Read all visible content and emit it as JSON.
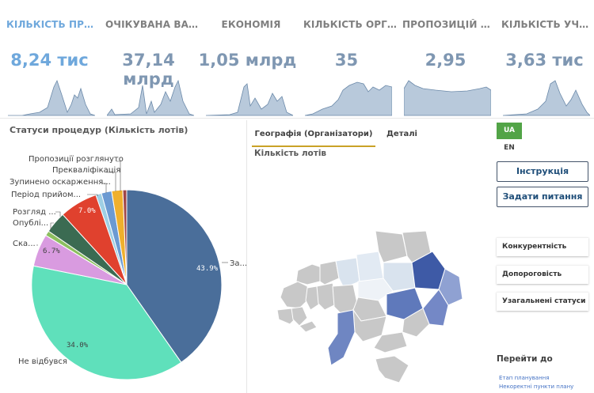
{
  "kpis": [
    {
      "title": "КІЛЬКІСТЬ ПРОЦ...",
      "value": "8,24 тис",
      "active": true
    },
    {
      "title": "ОЧІКУВАНА ВАРТ...",
      "value": "37,14 млрд",
      "active": false
    },
    {
      "title": "ЕКОНОМІЯ",
      "value": "1,05 млрд",
      "active": false
    },
    {
      "title": "КІЛЬКІСТЬ ОРГА...",
      "value": "35",
      "active": false
    },
    {
      "title": "ПРОПОЗИЦІЙ НА ...",
      "value": "2,95",
      "active": false
    },
    {
      "title": "КІЛЬКІСТЬ УЧАС...",
      "value": "3,63 тис",
      "active": false
    }
  ],
  "pie": {
    "title": "Статуси процедур (Кількість лотів)",
    "labels": {
      "proposals_reviewed": "Пропозиції розглянуто",
      "prequalification": "Прекваліфікація",
      "stopped_appeal": "Зупинено оскарження...",
      "acceptance_period": "Період прийом...",
      "review": "Розгляд ...",
      "published": "Опублі...",
      "ska": "Ска...",
      "za": "За...",
      "not_held": "Не відбувся"
    },
    "pct_labels": {
      "za": "43.9%",
      "not_held": "34.0%",
      "ska": "6.7%",
      "acceptance": "7.0%"
    },
    "colors": {
      "za": "#4a6e9a",
      "not_held": "#5fe0bb",
      "ska": "#d99be0",
      "published": "#8cbf5f",
      "review": "#3b6b52",
      "acceptance": "#e0412e",
      "stopped": "#9ecfe4",
      "prequal": "#6b9ad2",
      "proposals": "#efb02d",
      "tiny1": "#a14747",
      "tiny2": "#c9c9c9"
    }
  },
  "map_panel": {
    "tab_geo": "Географія (Організатори)",
    "tab_details": "Деталі",
    "subtitle": "Кількість лотів"
  },
  "right_panel": {
    "lang_ua": "UA",
    "lang_en": "EN",
    "instructions": "Інструкція",
    "ask_question": "Задати питання",
    "competitiveness": "Конкурентність",
    "thresholds": "Допороговість",
    "general_statuses": "Узагальнені статуси",
    "goto_title": "Перейти до",
    "goto_links": [
      "Етап планування",
      "Некоректні пункти плану"
    ]
  }
}
